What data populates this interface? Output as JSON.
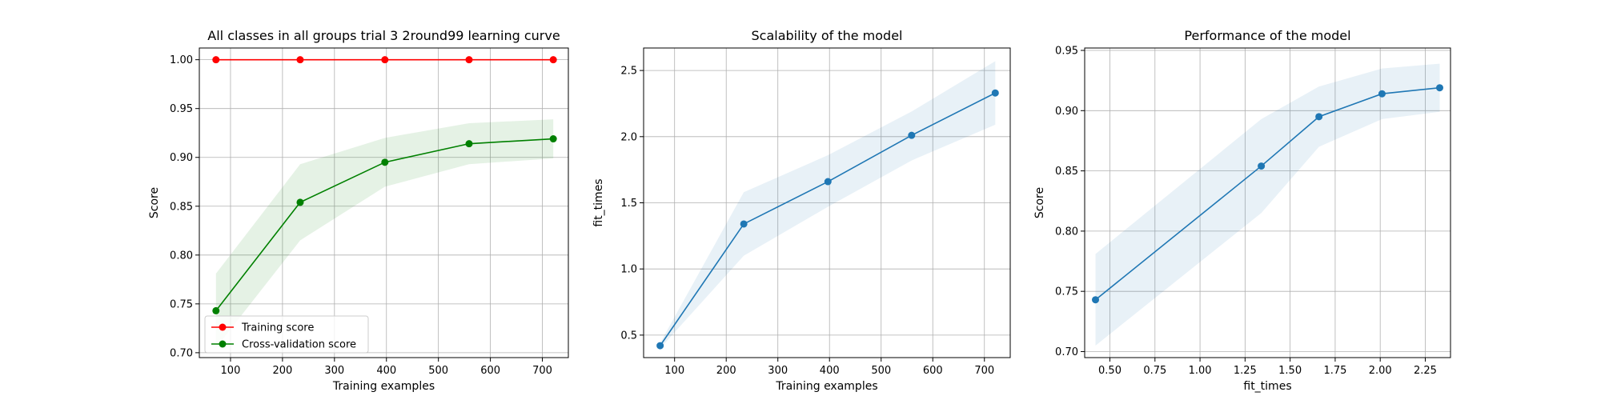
{
  "colors": {
    "training": "#ff0000",
    "cv": "#008000",
    "cv_band": "#008000",
    "blue": "#1f77b4",
    "blue_band": "#1f77b4"
  },
  "chart_data": [
    {
      "type": "line",
      "title": "All classes in all groups trial 3 2round99 learning curve",
      "xlabel": "Training examples",
      "ylabel": "Score",
      "xlim": [
        40,
        750
      ],
      "ylim": [
        0.695,
        1.012
      ],
      "xticks": [
        100,
        200,
        300,
        400,
        500,
        600,
        700
      ],
      "yticks": [
        0.7,
        0.75,
        0.8,
        0.85,
        0.9,
        0.95,
        1.0
      ],
      "ytick_decimals": 2,
      "grid": true,
      "legend_position": "lower-left",
      "x": [
        72,
        234,
        397,
        559,
        721
      ],
      "series": [
        {
          "name": "Training score",
          "color_key": "training",
          "values": [
            1.0,
            1.0,
            1.0,
            1.0,
            1.0
          ],
          "band_lower": [
            1.0,
            1.0,
            1.0,
            1.0,
            1.0
          ],
          "band_upper": [
            1.0,
            1.0,
            1.0,
            1.0,
            1.0
          ]
        },
        {
          "name": "Cross-validation score",
          "color_key": "cv",
          "values": [
            0.743,
            0.854,
            0.895,
            0.914,
            0.919
          ],
          "band_lower": [
            0.705,
            0.815,
            0.87,
            0.893,
            0.899
          ],
          "band_upper": [
            0.781,
            0.893,
            0.92,
            0.935,
            0.939
          ]
        }
      ]
    },
    {
      "type": "line",
      "title": "Scalability of the model",
      "xlabel": "Training examples",
      "ylabel": "fit_times",
      "xlim": [
        40,
        750
      ],
      "ylim": [
        0.33,
        2.67
      ],
      "xticks": [
        100,
        200,
        300,
        400,
        500,
        600,
        700
      ],
      "yticks": [
        0.5,
        1.0,
        1.5,
        2.0,
        2.5
      ],
      "ytick_decimals": 1,
      "grid": true,
      "x": [
        72,
        234,
        397,
        559,
        721
      ],
      "series": [
        {
          "color_key": "blue",
          "values": [
            0.42,
            1.34,
            1.66,
            2.01,
            2.33
          ],
          "band_lower": [
            0.4,
            1.1,
            1.47,
            1.82,
            2.09
          ],
          "band_upper": [
            0.44,
            1.58,
            1.86,
            2.19,
            2.57
          ]
        }
      ]
    },
    {
      "type": "line",
      "title": "Performance of the model",
      "xlabel": "fit_times",
      "ylabel": "Score",
      "xlim": [
        0.36,
        2.39
      ],
      "ylim": [
        0.695,
        0.952
      ],
      "xticks": [
        0.5,
        0.75,
        1.0,
        1.25,
        1.5,
        1.75,
        2.0,
        2.25
      ],
      "xtick_decimals": 2,
      "yticks": [
        0.7,
        0.75,
        0.8,
        0.85,
        0.9,
        0.95
      ],
      "ytick_decimals": 2,
      "grid": true,
      "x": [
        0.42,
        1.34,
        1.66,
        2.01,
        2.33
      ],
      "series": [
        {
          "color_key": "blue",
          "values": [
            0.743,
            0.854,
            0.895,
            0.914,
            0.919
          ],
          "band_lower": [
            0.705,
            0.815,
            0.87,
            0.893,
            0.899
          ],
          "band_upper": [
            0.781,
            0.893,
            0.92,
            0.935,
            0.939
          ]
        }
      ]
    }
  ]
}
